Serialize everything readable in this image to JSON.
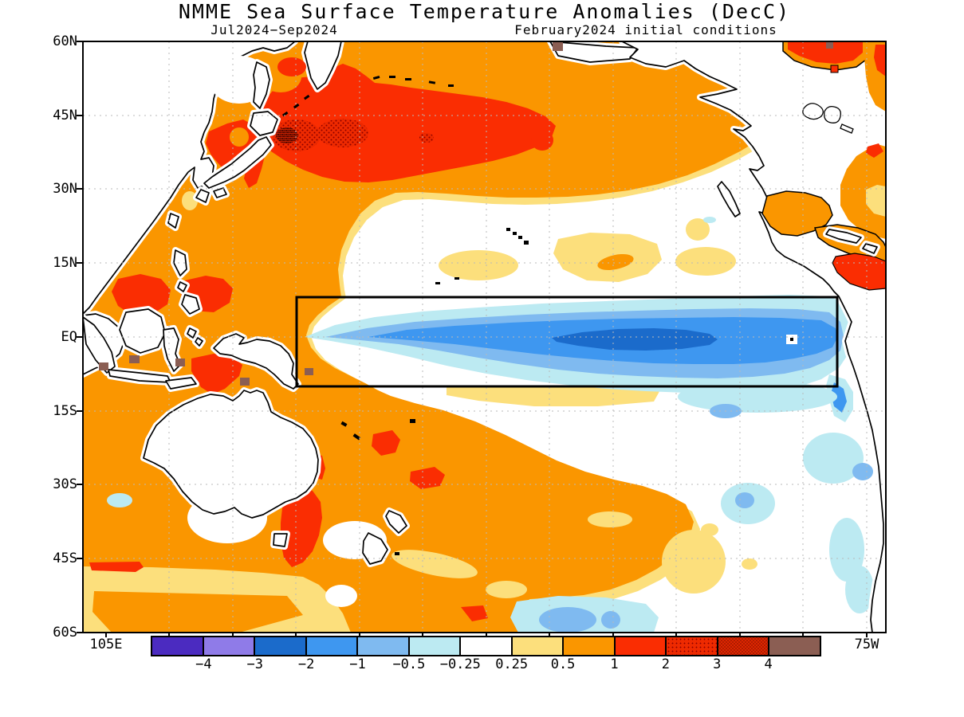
{
  "header": {
    "title": "NMME Sea Surface Temperature Anomalies (DecC)",
    "season": "Jul2024−Sep2024",
    "init_conditions": "February2024 initial conditions"
  },
  "map": {
    "lat_labels": [
      "60N",
      "45N",
      "30N",
      "15N",
      "EQ",
      "15S",
      "30S",
      "45S",
      "60S"
    ],
    "lon_labels": [
      "105E",
      "75W"
    ]
  },
  "colorbar": {
    "tick_labels": [
      "−4",
      "−3",
      "−2",
      "−1",
      "−0.5",
      "−0.25",
      "0.25",
      "0.5",
      "1",
      "2",
      "3",
      "4"
    ],
    "segments": [
      {
        "range": "< -4",
        "color": "#4B2BC0",
        "pattern": "solid"
      },
      {
        "range": "-4 to -3",
        "color": "#8F7BE8",
        "pattern": "solid"
      },
      {
        "range": "-3 to -2",
        "color": "#1B6BCB",
        "pattern": "solid"
      },
      {
        "range": "-2 to -1",
        "color": "#3E97F0",
        "pattern": "solid"
      },
      {
        "range": "-1 to -0.5",
        "color": "#7FBAF0",
        "pattern": "solid"
      },
      {
        "range": "-0.5 to -0.25",
        "color": "#BCEAF2",
        "pattern": "solid"
      },
      {
        "range": "-0.25 to 0.25",
        "color": "#FFFFFF",
        "pattern": "solid"
      },
      {
        "range": "0.25 to 0.5",
        "color": "#FCDF7C",
        "pattern": "solid"
      },
      {
        "range": "0.5 to 1",
        "color": "#FA9600",
        "pattern": "solid"
      },
      {
        "range": "1 to 2",
        "color": "#FA2D02",
        "pattern": "solid"
      },
      {
        "range": "2 to 3",
        "color": "#EE2A00",
        "pattern": "dots"
      },
      {
        "range": "3 to 4",
        "color": "#DD2600",
        "pattern": "dense-dots"
      },
      {
        "range": "> 4",
        "color": "#8B5E53",
        "pattern": "solid"
      }
    ]
  },
  "chart_data": {
    "type": "heatmap",
    "subtype": "filled_contour_map",
    "title": "NMME Sea Surface Temperature Anomalies (DecC)",
    "forecast_period": "Jul2024−Sep2024",
    "initial_conditions": "February2024",
    "units": "degrees Celsius",
    "map_domain": {
      "lon_range": [
        "105E",
        "75W"
      ],
      "lat_range": [
        "60S",
        "60N"
      ]
    },
    "lat_ticks": [
      "60N",
      "45N",
      "30N",
      "15N",
      "EQ",
      "15S",
      "30S",
      "45S",
      "60S"
    ],
    "lon_ticks": [
      "105E",
      "75W"
    ],
    "contour_levels": [
      -4,
      -3,
      -2,
      -1,
      -0.5,
      -0.25,
      0.25,
      0.5,
      1,
      2,
      3,
      4
    ],
    "palette": [
      "#4B2BC0",
      "#8F7BE8",
      "#1B6BCB",
      "#3E97F0",
      "#7FBAF0",
      "#BCEAF2",
      "#FFFFFF",
      "#FCDF7C",
      "#FA9600",
      "#FA2D02",
      "#EE2A00",
      "#DD2600",
      "#8B5E53"
    ],
    "legend_position": "bottom",
    "grid": "dotted, 15 degree spacing",
    "highlight_box": {
      "lon_range": "approx 150E to 80W",
      "lat_range": "approx 10S to 10N",
      "meaning": "equatorial Pacific ENSO monitoring region"
    },
    "features": [
      {
        "region": "central/western North Pacific, 30N-50N, 140E-160W",
        "anomaly_degC": "+1 to +3",
        "note": "stippled cores of +2 to +3 near 40N between 150E and 175E"
      },
      {
        "region": "equatorial Pacific cold tongue, 5N-5S, 165E-80W",
        "anomaly_degC": "-0.5 to -2.5",
        "note": "La Nina pattern; minimum near -2 to -2.5 around 140W-120W on the equator"
      },
      {
        "region": "western Pacific warm pool / Maritime Continent",
        "anomaly_degC": "+1 to +2",
        "note": "isolated coastal spots exceeding +4 (brown) near Indonesia"
      },
      {
        "region": "South China Sea and Philippine Sea",
        "anomaly_degC": "+1 to +2"
      },
      {
        "region": "Sea of Japan / southern Sea of Okhotsk",
        "anomaly_degC": "+1 to +2"
      },
      {
        "region": "South Pacific, 5S-35S west of 140W",
        "anomaly_degC": "+0.5 to +1",
        "note": "patches of +1 to +2 in Coral Sea, east of Tasmania and east of New Zealand"
      },
      {
        "region": "southeast Pacific off Peru and Chile",
        "anomaly_degC": "-0.25 to -1"
      },
      {
        "region": "Gulf of Mexico and Caribbean",
        "anomaly_degC": "+0.5 to +2"
      },
      {
        "region": "northwest Atlantic off US east coast",
        "anomaly_degC": "+0.5 to +2"
      },
      {
        "region": "Hudson Bay area",
        "anomaly_degC": "+1 to +2"
      },
      {
        "region": "Gulf of Alaska",
        "anomaly_degC": "+0.5 to +1, small +1 to +2 spot"
      }
    ]
  }
}
